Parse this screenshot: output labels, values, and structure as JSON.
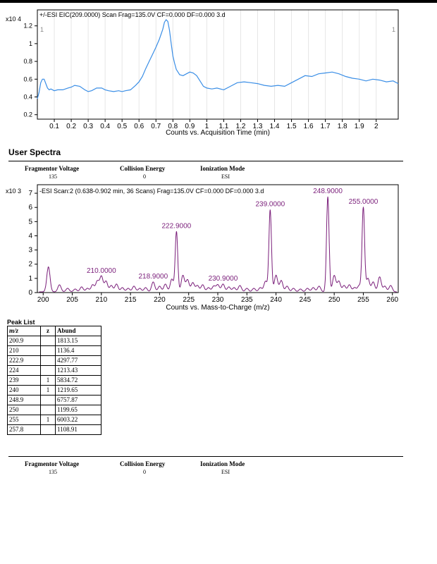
{
  "eic_chart": {
    "type": "line",
    "title": "+/-ESI EIC(209.0000) Scan Frag=135.0V CF=0.000 DF=0.000 3.d",
    "scale_label": "x10 4",
    "corner_left": "1",
    "corner_right": "1",
    "xlabel": "Counts vs. Acquisition Time (min)",
    "xlim": [
      0.0,
      2.13
    ],
    "ylim": [
      0.15,
      1.38
    ],
    "x_ticks": [
      0.1,
      0.2,
      0.3,
      0.4,
      0.5,
      0.6,
      0.7,
      0.8,
      0.9,
      1,
      1.1,
      1.2,
      1.3,
      1.4,
      1.5,
      1.6,
      1.7,
      1.8,
      1.9,
      2
    ],
    "y_ticks": [
      "0.2",
      "0.4",
      "0.6",
      "0.8",
      "1",
      "1.2"
    ],
    "y_tick_values": [
      0.2,
      0.4,
      0.6,
      0.8,
      1.0,
      1.2
    ],
    "line_color": "#3a8ee6",
    "x": [
      0.0,
      0.01,
      0.02,
      0.03,
      0.04,
      0.05,
      0.06,
      0.07,
      0.08,
      0.1,
      0.12,
      0.15,
      0.18,
      0.2,
      0.22,
      0.25,
      0.28,
      0.3,
      0.32,
      0.35,
      0.38,
      0.4,
      0.42,
      0.45,
      0.48,
      0.5,
      0.52,
      0.55,
      0.58,
      0.6,
      0.62,
      0.64,
      0.66,
      0.68,
      0.7,
      0.72,
      0.74,
      0.75,
      0.76,
      0.77,
      0.78,
      0.79,
      0.8,
      0.81,
      0.82,
      0.84,
      0.86,
      0.88,
      0.9,
      0.92,
      0.94,
      0.96,
      0.98,
      1.0,
      1.03,
      1.06,
      1.1,
      1.14,
      1.18,
      1.22,
      1.26,
      1.3,
      1.34,
      1.38,
      1.42,
      1.46,
      1.5,
      1.54,
      1.58,
      1.62,
      1.66,
      1.7,
      1.74,
      1.78,
      1.82,
      1.86,
      1.9,
      1.94,
      1.98,
      2.02,
      2.06,
      2.1,
      2.13
    ],
    "y": [
      0.38,
      0.45,
      0.56,
      0.6,
      0.6,
      0.55,
      0.5,
      0.48,
      0.49,
      0.47,
      0.48,
      0.48,
      0.5,
      0.51,
      0.53,
      0.52,
      0.48,
      0.46,
      0.47,
      0.5,
      0.5,
      0.48,
      0.47,
      0.46,
      0.47,
      0.46,
      0.47,
      0.48,
      0.53,
      0.57,
      0.63,
      0.72,
      0.8,
      0.88,
      0.96,
      1.05,
      1.16,
      1.24,
      1.27,
      1.25,
      1.15,
      1.0,
      0.86,
      0.78,
      0.71,
      0.65,
      0.64,
      0.66,
      0.68,
      0.67,
      0.64,
      0.58,
      0.52,
      0.5,
      0.49,
      0.5,
      0.48,
      0.52,
      0.56,
      0.57,
      0.56,
      0.55,
      0.53,
      0.52,
      0.53,
      0.52,
      0.56,
      0.6,
      0.64,
      0.63,
      0.66,
      0.67,
      0.68,
      0.66,
      0.63,
      0.61,
      0.6,
      0.58,
      0.6,
      0.59,
      0.57,
      0.58,
      0.55
    ]
  },
  "section": {
    "title": "User Spectra"
  },
  "meta_top": {
    "frag_label": "Fragmentor Voltage",
    "frag_value": "135",
    "ce_label": "Collision Energy",
    "ce_value": "0",
    "ion_label": "Ionization Mode",
    "ion_value": "ESI"
  },
  "spectrum_chart": {
    "type": "line",
    "title": "-ESI Scan:2 (0.638-0.902 min, 36 Scans) Frag=135.0V CF=0.000 DF=0.000 3.d",
    "scale_label": "x10 3",
    "xlabel": "Counts vs. Mass-to-Charge (m/z)",
    "xlim": [
      199.0,
      261.0
    ],
    "ylim": [
      0,
      7.6
    ],
    "x_ticks": [
      200,
      205,
      210,
      215,
      220,
      225,
      230,
      235,
      240,
      245,
      250,
      255,
      260
    ],
    "y_ticks": [
      "0",
      "1",
      "2",
      "3",
      "4",
      "5",
      "6",
      "7"
    ],
    "y_tick_values": [
      0,
      1,
      2,
      3,
      4,
      5,
      6,
      7
    ],
    "line_color": "#7a1e7a",
    "label_color": "#7a1e7a",
    "peaks": [
      {
        "mz": 200.9,
        "abund": 1.81
      },
      {
        "mz": 202.8,
        "abund": 0.55
      },
      {
        "mz": 204.2,
        "abund": 0.3
      },
      {
        "mz": 205.5,
        "abund": 0.25
      },
      {
        "mz": 206.6,
        "abund": 0.4
      },
      {
        "mz": 207.6,
        "abund": 0.3
      },
      {
        "mz": 208.5,
        "abund": 0.55
      },
      {
        "mz": 209.3,
        "abund": 0.8
      },
      {
        "mz": 210.0,
        "abund": 1.14
      },
      {
        "mz": 210.8,
        "abund": 0.8
      },
      {
        "mz": 211.7,
        "abund": 0.5
      },
      {
        "mz": 212.6,
        "abund": 0.6
      },
      {
        "mz": 213.6,
        "abund": 0.35
      },
      {
        "mz": 214.6,
        "abund": 0.3
      },
      {
        "mz": 215.6,
        "abund": 0.45
      },
      {
        "mz": 216.6,
        "abund": 0.3
      },
      {
        "mz": 217.6,
        "abund": 0.35
      },
      {
        "mz": 218.9,
        "abund": 0.75
      },
      {
        "mz": 220.0,
        "abund": 0.45
      },
      {
        "mz": 221.0,
        "abund": 0.6
      },
      {
        "mz": 222.1,
        "abund": 0.95
      },
      {
        "mz": 222.9,
        "abund": 4.3
      },
      {
        "mz": 224.0,
        "abund": 1.21
      },
      {
        "mz": 224.8,
        "abund": 0.9
      },
      {
        "mz": 225.7,
        "abund": 0.7
      },
      {
        "mz": 226.5,
        "abund": 0.5
      },
      {
        "mz": 227.4,
        "abund": 0.55
      },
      {
        "mz": 228.4,
        "abund": 0.35
      },
      {
        "mz": 229.3,
        "abund": 0.45
      },
      {
        "mz": 230.0,
        "abund": 0.55
      },
      {
        "mz": 230.9,
        "abund": 0.6
      },
      {
        "mz": 231.9,
        "abund": 0.4
      },
      {
        "mz": 232.8,
        "abund": 0.35
      },
      {
        "mz": 233.8,
        "abund": 0.5
      },
      {
        "mz": 235.0,
        "abund": 0.3
      },
      {
        "mz": 236.2,
        "abund": 0.3
      },
      {
        "mz": 237.3,
        "abund": 0.35
      },
      {
        "mz": 238.2,
        "abund": 0.8
      },
      {
        "mz": 239.0,
        "abund": 5.83
      },
      {
        "mz": 240.0,
        "abund": 1.22
      },
      {
        "mz": 240.9,
        "abund": 0.85
      },
      {
        "mz": 241.9,
        "abund": 0.45
      },
      {
        "mz": 243.0,
        "abund": 0.3
      },
      {
        "mz": 244.2,
        "abund": 0.25
      },
      {
        "mz": 245.4,
        "abund": 0.3
      },
      {
        "mz": 246.4,
        "abund": 0.35
      },
      {
        "mz": 247.4,
        "abund": 0.45
      },
      {
        "mz": 248.9,
        "abund": 6.76
      },
      {
        "mz": 250.0,
        "abund": 1.2
      },
      {
        "mz": 250.8,
        "abund": 0.8
      },
      {
        "mz": 251.7,
        "abund": 0.5
      },
      {
        "mz": 252.6,
        "abund": 0.55
      },
      {
        "mz": 253.5,
        "abund": 0.35
      },
      {
        "mz": 254.3,
        "abund": 0.5
      },
      {
        "mz": 255.0,
        "abund": 6.0
      },
      {
        "mz": 255.8,
        "abund": 1.0
      },
      {
        "mz": 256.7,
        "abund": 0.75
      },
      {
        "mz": 257.8,
        "abund": 1.11
      },
      {
        "mz": 258.7,
        "abund": 0.45
      },
      {
        "mz": 259.7,
        "abund": 0.5
      }
    ],
    "peak_labels": [
      {
        "text": "210.0000",
        "mz": 210.0,
        "abund": 1.14
      },
      {
        "text": "218.9000",
        "mz": 218.9,
        "abund": 0.75
      },
      {
        "text": "222.9000",
        "mz": 222.9,
        "abund": 4.3
      },
      {
        "text": "230.9000",
        "mz": 230.9,
        "abund": 0.6
      },
      {
        "text": "239.0000",
        "mz": 239.0,
        "abund": 5.83
      },
      {
        "text": "248.9000",
        "mz": 248.9,
        "abund": 6.76
      },
      {
        "text": "255.0000",
        "mz": 255.0,
        "abund": 6.0
      }
    ]
  },
  "peak_list": {
    "title": "Peak List",
    "headers": [
      "m/z",
      "z",
      "Abund"
    ],
    "rows": [
      {
        "mz": "200.9",
        "z": "",
        "abund": "1813.15"
      },
      {
        "mz": "210",
        "z": "",
        "abund": "1136.4"
      },
      {
        "mz": "222.9",
        "z": "",
        "abund": "4297.77"
      },
      {
        "mz": "224",
        "z": "",
        "abund": "1213.43"
      },
      {
        "mz": "239",
        "z": "1",
        "abund": "5834.72"
      },
      {
        "mz": "240",
        "z": "1",
        "abund": "1219.65"
      },
      {
        "mz": "248.9",
        "z": "",
        "abund": "6757.87"
      },
      {
        "mz": "250",
        "z": "",
        "abund": "1199.65"
      },
      {
        "mz": "255",
        "z": "1",
        "abund": "6003.22"
      },
      {
        "mz": "257.8",
        "z": "",
        "abund": "1108.91"
      }
    ]
  },
  "meta_bottom": {
    "frag_label": "Fragmentor Voltage",
    "frag_value": "135",
    "ce_label": "Collision Energy",
    "ce_value": "0",
    "ion_label": "Ionization Mode",
    "ion_value": "ESI"
  }
}
